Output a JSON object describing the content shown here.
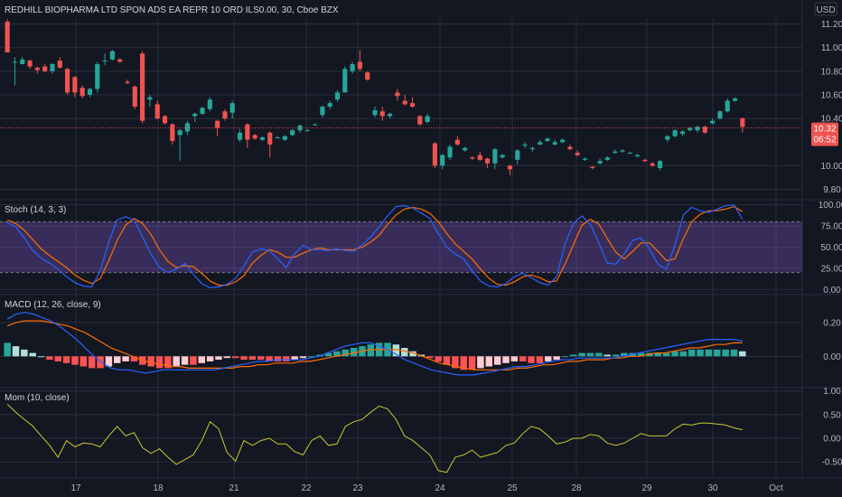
{
  "header": {
    "title": "REDHILL BIOPHARMA LTD SPON ADS EA REPR 10 ORD ILS0.00, 30, Cboe BZX",
    "currency": "USD"
  },
  "price_tags": {
    "last": "10.32",
    "countdown": "06:52"
  },
  "x_labels": [
    "17",
    "18",
    "21",
    "22",
    "23",
    "24",
    "25",
    "28",
    "29",
    "30",
    "Oct"
  ],
  "colors": {
    "background": "#131722",
    "up": "#26a69a",
    "down": "#ef5350",
    "grid": "#2a2e39",
    "stoch_k": "#2962ff",
    "stoch_d": "#ff6d00",
    "stoch_band": "#7e57c2",
    "mom": "#c9c930"
  },
  "chart_data": [
    {
      "type": "candlestick",
      "title": "REDHILL BIOPHARMA LTD SPON ADS EA REPR 10 ORD ILS0.00, 30, Cboe BZX",
      "yticks": [
        11.2,
        11.0,
        10.8,
        10.6,
        10.4,
        10.0,
        9.8
      ],
      "ylim": [
        9.72,
        11.25
      ],
      "last_price": 10.32,
      "candles": [
        [
          11.22,
          10.96,
          11.24,
          10.96
        ],
        [
          10.88,
          10.88,
          10.92,
          10.68
        ],
        [
          10.86,
          10.9,
          10.92,
          10.86
        ],
        [
          10.89,
          10.84,
          10.9,
          10.82
        ],
        [
          10.83,
          10.81,
          10.84,
          10.78
        ],
        [
          10.84,
          10.8,
          10.86,
          10.79
        ],
        [
          10.8,
          10.86,
          10.87,
          10.78
        ],
        [
          10.89,
          10.83,
          10.92,
          10.82
        ],
        [
          10.82,
          10.62,
          10.83,
          10.6
        ],
        [
          10.75,
          10.62,
          10.76,
          10.58
        ],
        [
          10.66,
          10.59,
          10.68,
          10.57
        ],
        [
          10.6,
          10.65,
          10.66,
          10.58
        ],
        [
          10.65,
          10.86,
          10.88,
          10.62
        ],
        [
          10.89,
          10.89,
          10.95,
          10.85
        ],
        [
          10.9,
          10.97,
          10.98,
          10.89
        ],
        [
          10.9,
          10.88,
          10.91,
          10.87
        ],
        [
          10.71,
          10.7,
          10.73,
          10.69
        ],
        [
          10.67,
          10.5,
          10.68,
          10.48
        ],
        [
          10.95,
          10.38,
          10.97,
          10.36
        ],
        [
          10.56,
          10.58,
          10.6,
          10.5
        ],
        [
          10.52,
          10.4,
          10.55,
          10.39
        ],
        [
          10.42,
          10.36,
          10.43,
          10.35
        ],
        [
          10.35,
          10.21,
          10.36,
          10.18
        ],
        [
          10.26,
          10.3,
          10.31,
          10.04
        ],
        [
          10.29,
          10.36,
          10.38,
          10.26
        ],
        [
          10.42,
          10.44,
          10.45,
          10.37
        ],
        [
          10.44,
          10.49,
          10.5,
          10.43
        ],
        [
          10.48,
          10.56,
          10.58,
          10.46
        ],
        [
          10.38,
          10.32,
          10.39,
          10.25
        ],
        [
          10.46,
          10.4,
          10.48,
          10.38
        ],
        [
          10.45,
          10.53,
          10.55,
          10.4
        ],
        [
          10.22,
          10.28,
          10.31,
          10.2
        ],
        [
          10.35,
          10.22,
          10.36,
          10.15
        ],
        [
          10.26,
          10.23,
          10.27,
          10.22
        ],
        [
          10.22,
          10.24,
          10.25,
          10.21
        ],
        [
          10.28,
          10.18,
          10.29,
          10.07
        ],
        [
          10.24,
          10.24,
          10.25,
          10.23
        ],
        [
          10.22,
          10.25,
          10.26,
          10.21
        ],
        [
          10.26,
          10.3,
          10.31,
          10.25
        ],
        [
          10.3,
          10.34,
          10.35,
          10.28
        ],
        [
          10.3,
          10.3,
          10.31,
          10.29
        ],
        [
          10.35,
          10.35,
          10.36,
          10.34
        ],
        [
          10.43,
          10.5,
          10.51,
          10.41
        ],
        [
          10.5,
          10.53,
          10.55,
          10.48
        ],
        [
          10.56,
          10.62,
          10.64,
          10.54
        ],
        [
          10.62,
          10.82,
          10.84,
          10.68
        ],
        [
          10.8,
          10.86,
          10.88,
          10.78
        ],
        [
          10.88,
          10.82,
          10.98,
          10.8
        ],
        [
          10.79,
          10.73,
          10.8,
          10.72
        ],
        [
          10.43,
          10.47,
          10.5,
          10.41
        ],
        [
          10.46,
          10.42,
          10.5,
          10.38
        ],
        [
          10.42,
          10.44,
          10.45,
          10.4
        ],
        [
          10.62,
          10.59,
          10.65,
          10.55
        ],
        [
          10.55,
          10.52,
          10.6,
          10.51
        ],
        [
          10.53,
          10.5,
          10.58,
          10.49
        ],
        [
          10.42,
          10.35,
          10.43,
          10.34
        ],
        [
          10.37,
          10.42,
          10.44,
          10.36
        ],
        [
          10.19,
          10.0,
          10.2,
          9.98
        ],
        [
          10.0,
          10.09,
          10.1,
          9.97
        ],
        [
          10.07,
          10.16,
          10.18,
          10.05
        ],
        [
          10.22,
          10.18,
          10.25,
          10.17
        ],
        [
          10.13,
          10.15,
          10.16,
          10.12
        ],
        [
          10.07,
          10.06,
          10.08,
          10.05
        ],
        [
          10.09,
          10.05,
          10.12,
          10.04
        ],
        [
          10.06,
          10.02,
          10.07,
          9.98
        ],
        [
          10.02,
          10.14,
          10.15,
          9.97
        ],
        [
          10.07,
          10.09,
          10.1,
          10.06
        ],
        [
          10.0,
          9.97,
          10.01,
          9.92
        ],
        [
          10.05,
          10.13,
          10.14,
          10.01
        ],
        [
          10.17,
          10.18,
          10.2,
          10.15
        ],
        [
          10.14,
          10.15,
          10.16,
          10.12
        ],
        [
          10.18,
          10.2,
          10.22,
          10.17
        ],
        [
          10.21,
          10.23,
          10.24,
          10.2
        ],
        [
          10.18,
          10.2,
          10.22,
          10.17
        ],
        [
          10.2,
          10.22,
          10.23,
          10.19
        ],
        [
          10.16,
          10.14,
          10.18,
          10.13
        ],
        [
          10.11,
          10.09,
          10.13,
          10.08
        ],
        [
          10.05,
          10.06,
          10.07,
          10.04
        ],
        [
          9.99,
          9.98,
          10.0,
          9.97
        ],
        [
          10.02,
          10.04,
          10.06,
          10.01
        ],
        [
          10.05,
          10.07,
          10.08,
          10.04
        ],
        [
          10.11,
          10.12,
          10.14,
          10.1
        ],
        [
          10.12,
          10.13,
          10.14,
          10.11
        ],
        [
          10.11,
          10.11,
          10.12,
          10.1
        ],
        [
          10.08,
          10.09,
          10.1,
          10.07
        ],
        [
          10.05,
          10.04,
          10.06,
          10.03
        ],
        [
          10.02,
          10.0,
          10.03,
          9.99
        ],
        [
          9.98,
          10.04,
          10.05,
          9.96
        ],
        [
          10.22,
          10.25,
          10.26,
          10.2
        ],
        [
          10.25,
          10.3,
          10.31,
          10.24
        ],
        [
          10.27,
          10.29,
          10.3,
          10.25
        ],
        [
          10.3,
          10.32,
          10.33,
          10.29
        ],
        [
          10.3,
          10.33,
          10.34,
          10.28
        ],
        [
          10.33,
          10.28,
          10.34,
          10.27
        ],
        [
          10.36,
          10.38,
          10.4,
          10.35
        ],
        [
          10.4,
          10.46,
          10.47,
          10.39
        ],
        [
          10.46,
          10.55,
          10.57,
          10.45
        ],
        [
          10.55,
          10.57,
          10.58,
          10.54
        ],
        [
          10.4,
          10.33,
          10.41,
          10.28
        ]
      ]
    },
    {
      "type": "line",
      "title": "Stoch (14, 3, 3)",
      "yticks": [
        100.0,
        75.0,
        50.0,
        25.0,
        0.0
      ],
      "ylim": [
        -5,
        105
      ],
      "band": [
        20,
        80
      ],
      "series": [
        {
          "name": "%K",
          "values": [
            79,
            74,
            61,
            46,
            37,
            31,
            24,
            15,
            8,
            4,
            3,
            22,
            56,
            82,
            86,
            82,
            62,
            42,
            26,
            20,
            24,
            31,
            18,
            7,
            2,
            3,
            6,
            13,
            28,
            44,
            48,
            46,
            36,
            26,
            42,
            52,
            47,
            47,
            46,
            48,
            46,
            45,
            53,
            62,
            74,
            87,
            98,
            99,
            96,
            90,
            84,
            66,
            50,
            42,
            36,
            22,
            10,
            4,
            3,
            7,
            15,
            19,
            14,
            8,
            5,
            15,
            54,
            78,
            87,
            77,
            55,
            31,
            30,
            42,
            58,
            61,
            48,
            30,
            24,
            52,
            88,
            97,
            93,
            91,
            95,
            99,
            100,
            83
          ]
        },
        {
          "name": "%D",
          "values": [
            82,
            78,
            70,
            59,
            48,
            40,
            33,
            26,
            17,
            11,
            7,
            13,
            34,
            58,
            76,
            84,
            78,
            65,
            47,
            33,
            26,
            28,
            27,
            19,
            10,
            5,
            5,
            9,
            16,
            31,
            40,
            47,
            44,
            38,
            38,
            43,
            47,
            49,
            47,
            47,
            47,
            47,
            50,
            56,
            64,
            77,
            88,
            95,
            97,
            95,
            90,
            80,
            66,
            54,
            45,
            36,
            24,
            13,
            6,
            5,
            9,
            15,
            17,
            14,
            9,
            10,
            30,
            53,
            76,
            83,
            77,
            60,
            44,
            36,
            45,
            55,
            55,
            45,
            34,
            36,
            60,
            80,
            89,
            93,
            93,
            95,
            98,
            92
          ]
        }
      ]
    },
    {
      "type": "bar",
      "title": "MACD (12, 26, close, 9)",
      "yticks": [
        0.2,
        0.0
      ],
      "ylim": [
        -0.18,
        0.36
      ],
      "histogram": [
        0.08,
        0.06,
        0.04,
        0.02,
        0.0,
        -0.02,
        -0.03,
        -0.04,
        -0.05,
        -0.06,
        -0.07,
        -0.07,
        -0.06,
        -0.04,
        -0.03,
        -0.03,
        -0.05,
        -0.06,
        -0.07,
        -0.07,
        -0.06,
        -0.05,
        -0.05,
        -0.04,
        -0.03,
        -0.02,
        -0.01,
        -0.01,
        -0.02,
        -0.02,
        -0.02,
        -0.03,
        -0.03,
        -0.03,
        -0.02,
        -0.01,
        0.0,
        0.01,
        0.02,
        0.03,
        0.04,
        0.05,
        0.06,
        0.07,
        0.08,
        0.08,
        0.07,
        0.05,
        0.03,
        0.01,
        -0.01,
        -0.03,
        -0.05,
        -0.07,
        -0.08,
        -0.08,
        -0.07,
        -0.06,
        -0.05,
        -0.04,
        -0.03,
        -0.03,
        -0.04,
        -0.04,
        -0.03,
        -0.02,
        0.0,
        0.01,
        0.02,
        0.02,
        0.02,
        0.01,
        0.01,
        0.02,
        0.02,
        0.02,
        0.02,
        0.02,
        0.02,
        0.03,
        0.03,
        0.04,
        0.04,
        0.04,
        0.04,
        0.04,
        0.04,
        0.03
      ],
      "series": [
        {
          "name": "MACD",
          "values": [
            0.22,
            0.25,
            0.26,
            0.25,
            0.23,
            0.21,
            0.18,
            0.14,
            0.1,
            0.05,
            0.0,
            -0.04,
            -0.07,
            -0.08,
            -0.08,
            -0.09,
            -0.1,
            -0.09,
            -0.08,
            -0.08,
            -0.08,
            -0.08,
            -0.08,
            -0.08,
            -0.08,
            -0.07,
            -0.06,
            -0.05,
            -0.04,
            -0.03,
            -0.03,
            -0.02,
            -0.02,
            -0.02,
            -0.02,
            -0.01,
            0.0,
            0.02,
            0.04,
            0.06,
            0.07,
            0.08,
            0.08,
            0.06,
            0.04,
            0.01,
            -0.02,
            -0.04,
            -0.06,
            -0.08,
            -0.09,
            -0.1,
            -0.11,
            -0.11,
            -0.11,
            -0.1,
            -0.09,
            -0.08,
            -0.07,
            -0.06,
            -0.06,
            -0.05,
            -0.04,
            -0.03,
            -0.02,
            -0.02,
            -0.01,
            -0.01,
            -0.01,
            -0.01,
            -0.01,
            0.0,
            0.01,
            0.02,
            0.03,
            0.04,
            0.05,
            0.06,
            0.07,
            0.08,
            0.09,
            0.1,
            0.1,
            0.1,
            0.1,
            0.09
          ]
        },
        {
          "name": "Signal",
          "values": [
            0.18,
            0.2,
            0.21,
            0.21,
            0.21,
            0.2,
            0.19,
            0.18,
            0.16,
            0.14,
            0.11,
            0.08,
            0.05,
            0.03,
            0.01,
            -0.01,
            -0.03,
            -0.04,
            -0.05,
            -0.06,
            -0.06,
            -0.07,
            -0.07,
            -0.07,
            -0.07,
            -0.07,
            -0.07,
            -0.06,
            -0.06,
            -0.05,
            -0.05,
            -0.04,
            -0.04,
            -0.04,
            -0.03,
            -0.03,
            -0.02,
            -0.01,
            0.0,
            0.01,
            0.02,
            0.03,
            0.04,
            0.04,
            0.04,
            0.04,
            0.03,
            0.02,
            0.0,
            -0.02,
            -0.04,
            -0.05,
            -0.06,
            -0.07,
            -0.08,
            -0.08,
            -0.08,
            -0.08,
            -0.08,
            -0.07,
            -0.07,
            -0.06,
            -0.05,
            -0.05,
            -0.04,
            -0.03,
            -0.03,
            -0.02,
            -0.02,
            -0.02,
            -0.01,
            -0.01,
            0.0,
            0.0,
            0.01,
            0.02,
            0.02,
            0.03,
            0.04,
            0.05,
            0.05,
            0.06,
            0.07,
            0.07,
            0.08,
            0.08
          ]
        }
      ]
    },
    {
      "type": "line",
      "title": "Mom (10, close)",
      "yticks": [
        1.0,
        0.5,
        0.0,
        -0.5
      ],
      "ylim": [
        -0.82,
        1.05
      ],
      "series": [
        {
          "name": "Mom",
          "values": [
            0.72,
            0.55,
            0.4,
            0.26,
            0.05,
            -0.15,
            -0.4,
            -0.05,
            -0.18,
            -0.1,
            -0.12,
            -0.18,
            0.05,
            0.25,
            0.05,
            0.12,
            -0.2,
            -0.32,
            -0.22,
            -0.4,
            -0.55,
            -0.45,
            -0.35,
            -0.05,
            0.35,
            0.2,
            -0.3,
            -0.48,
            -0.05,
            -0.15,
            -0.05,
            0.0,
            -0.12,
            -0.12,
            -0.28,
            -0.35,
            -0.05,
            0.05,
            -0.15,
            -0.12,
            0.25,
            0.35,
            0.4,
            0.55,
            0.68,
            0.62,
            0.4,
            0.05,
            -0.05,
            -0.2,
            -0.35,
            -0.68,
            -0.72,
            -0.4,
            -0.35,
            -0.25,
            -0.4,
            -0.35,
            -0.3,
            -0.15,
            -0.1,
            0.1,
            0.25,
            0.2,
            0.05,
            -0.12,
            -0.08,
            0.0,
            0.0,
            0.08,
            0.05,
            -0.1,
            -0.15,
            -0.1,
            0.0,
            0.1,
            0.05,
            0.05,
            0.05,
            0.2,
            0.3,
            0.28,
            0.32,
            0.32,
            0.3,
            0.28,
            0.22,
            0.18
          ]
        }
      ]
    }
  ]
}
